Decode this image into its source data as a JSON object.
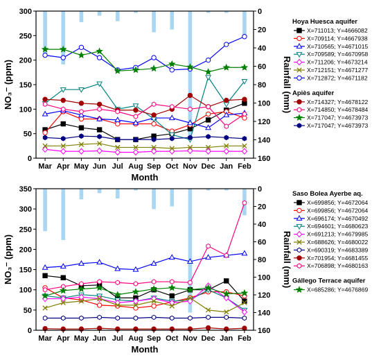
{
  "chart_data": [
    {
      "type": "line",
      "secondary_type": "bar",
      "xlabel": "Month",
      "ylabel": "NO₃⁻ (ppm)",
      "y2label": "Rainfall (mm)",
      "categories": [
        "Mar",
        "Apr",
        "May",
        "Jun",
        "Jul",
        "Aug",
        "Sep",
        "Oct",
        "Nov",
        "Dec",
        "Jan",
        "Feb"
      ],
      "ylim": [
        0,
        300
      ],
      "yticks": [
        0,
        50,
        100,
        150,
        200,
        250,
        300
      ],
      "y2lim": [
        0,
        160
      ],
      "y2_inverted": true,
      "y2ticks": [
        0,
        20,
        40,
        60,
        80,
        100,
        120,
        140,
        160
      ],
      "grid": false,
      "legend_position": "right",
      "rainfall": {
        "color": "#a9d6f2",
        "values": [
          48,
          58,
          12,
          5,
          11,
          2,
          23,
          20,
          140,
          2,
          2,
          30
        ]
      },
      "legend_groups": [
        {
          "title": "Hoya Huesca aquifer",
          "series_idx": [
            0,
            1,
            2,
            3,
            4,
            5,
            6
          ]
        },
        {
          "title": "Apiès aquifer",
          "series_idx": [
            7,
            8,
            9,
            10
          ]
        }
      ],
      "series": [
        {
          "name": "X=711013; Y=4666082",
          "color": "#000000",
          "marker": "square",
          "filled": true,
          "values": [
            58,
            70,
            62,
            58,
            38,
            38,
            45,
            50,
            60,
            78,
            98,
            112
          ]
        },
        {
          "name": "X=709114; Y=4667938",
          "color": "#ff0000",
          "marker": "circle",
          "filled": false,
          "values": [
            52,
            95,
            80,
            80,
            70,
            70,
            70,
            55,
            68,
            90,
            95,
            82
          ]
        },
        {
          "name": "X=710565; Y=4671015",
          "color": "#0000ff",
          "marker": "triangle-up",
          "filled": false,
          "values": [
            90,
            97,
            88,
            80,
            78,
            72,
            82,
            82,
            72,
            62,
            88,
            92
          ]
        },
        {
          "name": "X=709589; Y=4670958",
          "color": "#008080",
          "marker": "triangle-down",
          "filled": false,
          "values": [
            112,
            140,
            140,
            152,
            100,
            107,
            80,
            48,
            38,
            165,
            110,
            157
          ]
        },
        {
          "name": "X=711206; Y=4673214",
          "color": "#ff00ff",
          "marker": "diamond",
          "filled": false,
          "values": [
            18,
            14,
            14,
            15,
            12,
            12,
            14,
            14,
            15,
            14,
            14,
            14
          ]
        },
        {
          "name": "X=712151; Y=4671277",
          "color": "#808000",
          "marker": "x",
          "filled": false,
          "values": [
            25,
            25,
            28,
            30,
            22,
            22,
            22,
            20,
            22,
            22,
            25,
            25
          ]
        },
        {
          "name": "X=712872; Y=4671182",
          "color": "#0000ff",
          "marker": "circle",
          "filled": false,
          "values": [
            210,
            205,
            226,
            205,
            180,
            185,
            205,
            180,
            182,
            200,
            232,
            248
          ]
        },
        {
          "name": "X=714327; Y=4678122",
          "color": "#a00000",
          "marker": "circle",
          "filled": true,
          "values": [
            120,
            118,
            112,
            110,
            98,
            98,
            88,
            100,
            128,
            105,
            118,
            120
          ]
        },
        {
          "name": "X=714850; Y=4678484",
          "color": "#ff0080",
          "marker": "hexagon",
          "filled": false,
          "values": [
            110,
            100,
            95,
            100,
            95,
            85,
            110,
            105,
            100,
            105,
            65,
            90
          ]
        },
        {
          "name": "X=717047; Y=4673973",
          "color": "#008000",
          "marker": "star",
          "filled": true,
          "values": [
            222,
            222,
            210,
            218,
            178,
            180,
            183,
            192,
            186,
            176,
            185,
            185
          ]
        },
        {
          "name": "X=717047; Y=4673973",
          "color": "#000080",
          "marker": "hexagon",
          "filled": true,
          "values": [
            42,
            40,
            45,
            44,
            38,
            38,
            38,
            40,
            42,
            44,
            42,
            40
          ]
        }
      ]
    },
    {
      "type": "line",
      "secondary_type": "bar",
      "xlabel": "Month",
      "ylabel": "NO₃⁻ (ppm)",
      "y2label": "Rainfall (mm)",
      "categories": [
        "Mar",
        "Apr",
        "May",
        "Jun",
        "Jul",
        "Aug",
        "Sep",
        "Oct",
        "Nov",
        "Dec",
        "Jan",
        "Feb"
      ],
      "ylim": [
        0,
        350
      ],
      "yticks": [
        0,
        50,
        100,
        150,
        200,
        250,
        300,
        350
      ],
      "y2lim": [
        0,
        160
      ],
      "y2_inverted": true,
      "y2ticks": [
        0,
        20,
        40,
        60,
        80,
        100,
        120,
        140,
        160
      ],
      "grid": false,
      "legend_position": "right",
      "rainfall": {
        "color": "#a9d6f2",
        "values": [
          48,
          58,
          12,
          5,
          11,
          2,
          23,
          20,
          140,
          2,
          2,
          30
        ]
      },
      "legend_groups": [
        {
          "title": "Saso Bolea Ayerbe aq.",
          "series_idx": [
            0,
            1,
            2,
            3,
            4,
            5,
            6,
            7,
            8
          ]
        },
        {
          "title": "Gállego Terrace aquifer",
          "series_idx": [
            9
          ]
        }
      ],
      "series": [
        {
          "name": "X=699856; Y=4672064",
          "color": "#000000",
          "marker": "square",
          "filled": true,
          "values": [
            135,
            130,
            110,
            112,
            80,
            80,
            100,
            85,
            100,
            100,
            122,
            72
          ]
        },
        {
          "name": "X=699856; Y=4672064",
          "color": "#ff0000",
          "marker": "circle",
          "filled": false,
          "values": [
            105,
            80,
            75,
            62,
            60,
            55,
            60,
            70,
            80,
            95,
            95,
            85
          ]
        },
        {
          "name": "X=696174; Y=4670492",
          "color": "#0000ff",
          "marker": "triangle-up",
          "filled": false,
          "values": [
            155,
            158,
            165,
            168,
            152,
            150,
            165,
            180,
            170,
            180,
            185,
            190
          ]
        },
        {
          "name": "X=694601; Y=4680623",
          "color": "#008080",
          "marker": "triangle-down",
          "filled": false,
          "values": [
            85,
            80,
            88,
            85,
            75,
            72,
            80,
            72,
            75,
            100,
            80,
            50
          ]
        },
        {
          "name": "X=691213; Y=4679985",
          "color": "#ff00ff",
          "marker": "diamond",
          "filled": false,
          "values": [
            78,
            78,
            82,
            78,
            68,
            72,
            78,
            68,
            72,
            110,
            80,
            45
          ]
        },
        {
          "name": "X=688626; Y=4680022",
          "color": "#808000",
          "marker": "x",
          "filled": false,
          "values": [
            55,
            68,
            72,
            78,
            62,
            62,
            72,
            60,
            80,
            50,
            45,
            68
          ]
        },
        {
          "name": "X=690319; Y=4683389",
          "color": "#000080",
          "marker": "hexagon",
          "filled": false,
          "values": [
            30,
            30,
            30,
            32,
            30,
            30,
            32,
            30,
            30,
            32,
            32,
            30
          ]
        },
        {
          "name": "X=701954; Y=4681455",
          "color": "#a00000",
          "marker": "circle",
          "filled": true,
          "values": [
            4,
            3,
            3,
            5,
            3,
            3,
            3,
            3,
            3,
            6,
            3,
            5
          ]
        },
        {
          "name": "X=706898; Y=4680163",
          "color": "#ff0080",
          "marker": "hexagon",
          "filled": false,
          "values": [
            100,
            108,
            115,
            120,
            118,
            115,
            120,
            120,
            118,
            208,
            185,
            315
          ]
        },
        {
          "name": "X=685286; Y=4676869",
          "color": "#008000",
          "marker": "star",
          "filled": true,
          "values": [
            85,
            98,
            102,
            105,
            88,
            95,
            102,
            105,
            100,
            105,
            90,
            92
          ]
        }
      ]
    }
  ]
}
